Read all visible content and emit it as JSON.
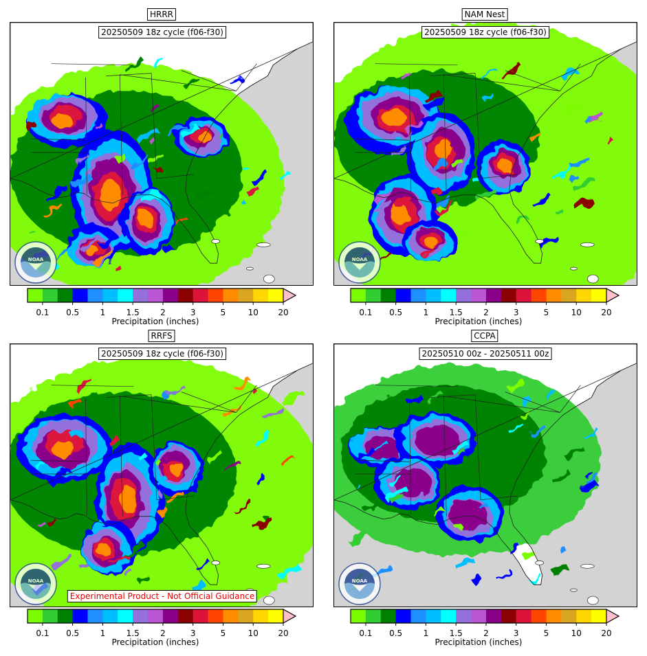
{
  "panels": [
    {
      "id": "hrrr",
      "title": "HRRR",
      "cycle_label": "20250509 18z cycle (f06-f30)",
      "disclaimer": ""
    },
    {
      "id": "namnest",
      "title": "NAM Nest",
      "cycle_label": "20250509 18z cycle (f06-f30)",
      "disclaimer": ""
    },
    {
      "id": "rrfs",
      "title": "RRFS",
      "cycle_label": "20250509 18z cycle (f06-f30)",
      "disclaimer": "Experimental Product - Not Official Guidance"
    },
    {
      "id": "ccpa",
      "title": "CCPA",
      "cycle_label": "20250510 00z - 20250511 00z",
      "disclaimer": ""
    }
  ],
  "colorbar": {
    "label": "Precipitation (inches)",
    "tick_labels": [
      "0.1",
      "0.5",
      "1",
      "1.5",
      "2",
      "3",
      "5",
      "10",
      "20"
    ],
    "colors": [
      "#7cfc00",
      "#32cd32",
      "#008000",
      "#0000ff",
      "#1e90ff",
      "#00bfff",
      "#00ffff",
      "#9370db",
      "#ba55d3",
      "#8b008b",
      "#8b0000",
      "#dc143c",
      "#ff4500",
      "#ff8c00",
      "#daa520",
      "#ffd700",
      "#ffff00"
    ],
    "extend_color": "#ffc0cb"
  },
  "logo": {
    "icon": "noaa-logo-icon"
  },
  "map_colors": {
    "ocean": "#d3d3d3",
    "land": "#ffffff",
    "borders": "#000000"
  }
}
